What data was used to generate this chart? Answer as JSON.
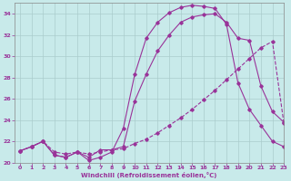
{
  "xlabel": "Windchill (Refroidissement éolien,°C)",
  "x_ticks": [
    0,
    1,
    2,
    3,
    4,
    5,
    6,
    7,
    8,
    9,
    10,
    11,
    12,
    13,
    14,
    15,
    16,
    17,
    18,
    19,
    20,
    21,
    22,
    23
  ],
  "ylim": [
    20,
    35
  ],
  "xlim": [
    -0.5,
    23
  ],
  "yticks": [
    20,
    22,
    24,
    26,
    28,
    30,
    32,
    34
  ],
  "line_color": "#993399",
  "bg_color": "#c8eaea",
  "grid_color": "#aacccc",
  "series1_x": [
    0,
    1,
    2,
    3,
    4,
    5,
    6,
    7,
    8,
    9,
    10,
    11,
    12,
    13,
    14,
    15,
    16,
    17,
    18,
    19,
    20,
    21,
    22,
    23
  ],
  "series1_y": [
    21.1,
    21.5,
    22.0,
    20.7,
    20.5,
    21.0,
    20.2,
    20.5,
    21.0,
    23.2,
    28.3,
    31.7,
    33.2,
    34.1,
    34.6,
    34.8,
    34.7,
    34.5,
    33.0,
    27.5,
    25.0,
    23.5,
    22.0,
    21.5
  ],
  "series2_x": [
    0,
    1,
    2,
    3,
    4,
    5,
    6,
    7,
    8,
    9,
    10,
    11,
    12,
    13,
    14,
    15,
    16,
    17,
    18,
    19,
    20,
    21,
    22,
    23
  ],
  "series2_y": [
    21.1,
    21.5,
    22.0,
    20.7,
    20.5,
    21.0,
    20.5,
    21.2,
    21.2,
    21.5,
    25.8,
    28.3,
    30.5,
    32.0,
    33.2,
    33.7,
    33.9,
    34.0,
    33.2,
    31.7,
    31.5,
    27.2,
    24.8,
    23.8
  ],
  "series3_x": [
    0,
    1,
    2,
    3,
    4,
    5,
    6,
    7,
    8,
    9,
    10,
    11,
    12,
    13,
    14,
    15,
    16,
    17,
    18,
    19,
    20,
    21,
    22,
    23
  ],
  "series3_y": [
    21.1,
    21.5,
    22.0,
    21.0,
    20.8,
    21.0,
    20.8,
    21.0,
    21.2,
    21.3,
    21.8,
    22.2,
    22.8,
    23.5,
    24.2,
    25.0,
    25.9,
    26.8,
    27.8,
    28.8,
    29.8,
    30.8,
    31.4,
    23.7
  ]
}
